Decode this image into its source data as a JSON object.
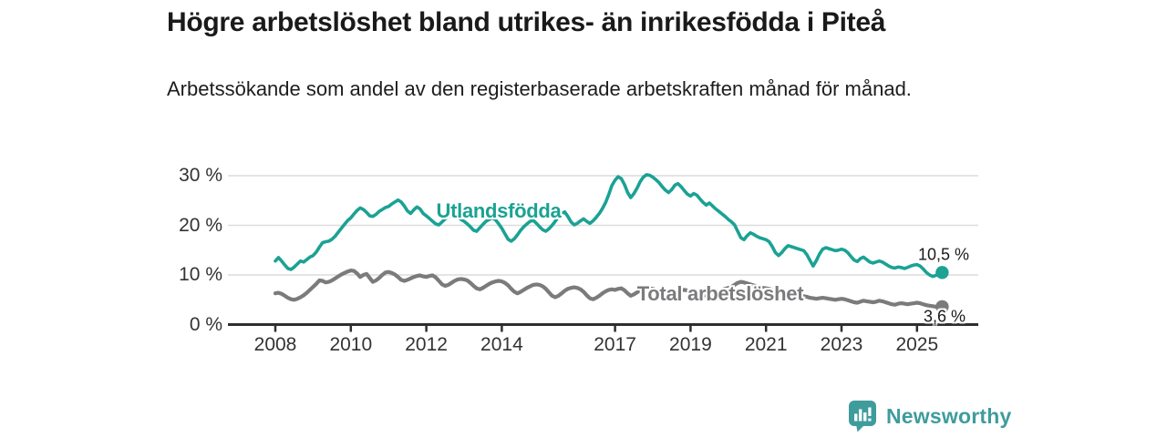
{
  "title": "Högre arbetslöshet bland utrikes- än inrikesfödda i Piteå",
  "subtitle": "Arbetssökande som andel av den registerbaserade arbetskraften månad för månad.",
  "footer": {
    "brand": "Newsworthy",
    "brand_icon": "speech-bubble-bar-chart"
  },
  "colors": {
    "teal_line": "#1ba294",
    "gray_line": "#7b7b7e",
    "grid": "#dcdcdc",
    "axis": "#2e2e2e",
    "tick_text": "#333333",
    "label_text": "#1a1a1a",
    "brand_teal": "#3f9c9c"
  },
  "chart_data": {
    "type": "line",
    "title": "Högre arbetslöshet bland utrikes- än inrikesfödda i Piteå",
    "subtitle": "Arbetssökande som andel av den registerbaserade arbetskraften månad för månad.",
    "unit": "%",
    "frequency": "monthly",
    "x_start": "2008-01",
    "x_end": "2025-09",
    "ylim": [
      0,
      30
    ],
    "grid": true,
    "y_ticks": [
      {
        "label": "30 %",
        "value": 30
      },
      {
        "label": "20 %",
        "value": 20
      },
      {
        "label": "10 %",
        "value": 10
      },
      {
        "label": "0 %",
        "value": 0
      }
    ],
    "x_ticks": [
      {
        "label": "2008",
        "year": 2008
      },
      {
        "label": "2010",
        "year": 2010
      },
      {
        "label": "2012",
        "year": 2012
      },
      {
        "label": "2014",
        "year": 2014
      },
      {
        "label": "2017",
        "year": 2017
      },
      {
        "label": "2019",
        "year": 2019
      },
      {
        "label": "2021",
        "year": 2021
      },
      {
        "label": "2023",
        "year": 2023
      },
      {
        "label": "2025",
        "year": 2025
      }
    ],
    "series": [
      {
        "name": "Utlandsfödda",
        "id": "utlandsfodda",
        "color": "#1ba294",
        "end_label": "10,5 %",
        "end_value": 10.5,
        "values": [
          12.8,
          13.5,
          12.8,
          12.0,
          11.3,
          11.1,
          11.6,
          12.2,
          12.8,
          12.6,
          13.1,
          13.6,
          13.9,
          14.6,
          15.6,
          16.5,
          16.7,
          16.8,
          17.2,
          17.8,
          18.6,
          19.4,
          20.2,
          21.0,
          21.5,
          22.3,
          23.0,
          23.5,
          23.2,
          22.6,
          21.9,
          21.8,
          22.2,
          22.8,
          23.2,
          23.6,
          23.8,
          24.3,
          24.7,
          25.1,
          24.7,
          23.9,
          22.9,
          22.4,
          23.1,
          23.7,
          23.3,
          22.4,
          21.9,
          21.4,
          20.8,
          20.3,
          20.1,
          20.7,
          21.3,
          21.7,
          22.0,
          22.2,
          21.8,
          21.2,
          20.8,
          20.3,
          19.7,
          19.0,
          18.8,
          19.5,
          20.2,
          20.8,
          21.2,
          21.5,
          21.1,
          20.3,
          19.4,
          18.3,
          17.2,
          16.8,
          17.3,
          18.1,
          19.0,
          19.7,
          20.3,
          20.8,
          21.0,
          20.4,
          19.7,
          19.1,
          18.8,
          19.3,
          20.0,
          20.8,
          21.7,
          22.3,
          22.7,
          21.8,
          20.7,
          20.1,
          20.4,
          20.9,
          21.3,
          20.8,
          20.4,
          20.9,
          21.6,
          22.4,
          23.4,
          24.6,
          26.2,
          28.0,
          29.1,
          29.8,
          29.4,
          28.2,
          26.6,
          25.6,
          26.4,
          27.5,
          28.8,
          29.7,
          30.2,
          30.1,
          29.7,
          29.2,
          28.6,
          27.8,
          27.1,
          26.6,
          27.2,
          28.1,
          28.4,
          27.8,
          27.0,
          26.3,
          25.9,
          26.4,
          26.1,
          25.3,
          24.6,
          24.1,
          24.5,
          23.9,
          23.3,
          22.8,
          22.3,
          21.8,
          21.2,
          20.7,
          20.1,
          18.8,
          17.5,
          17.1,
          17.9,
          18.5,
          18.2,
          17.8,
          17.5,
          17.3,
          17.1,
          16.7,
          15.7,
          14.5,
          13.9,
          14.5,
          15.3,
          15.9,
          15.7,
          15.5,
          15.3,
          15.1,
          14.9,
          14.1,
          12.9,
          11.8,
          12.9,
          14.2,
          15.2,
          15.5,
          15.3,
          15.1,
          14.9,
          15.0,
          15.2,
          15.0,
          14.5,
          13.7,
          13.0,
          12.7,
          13.3,
          13.6,
          13.1,
          12.6,
          12.4,
          12.6,
          12.8,
          12.6,
          12.2,
          11.8,
          11.5,
          11.4,
          11.6,
          11.5,
          11.3,
          11.5,
          11.8,
          12.0,
          12.1,
          11.8,
          11.2,
          10.5,
          10.0,
          9.7,
          9.9,
          10.2,
          10.5
        ]
      },
      {
        "name": "Total arbetslöshet",
        "id": "total-arbetsloshet",
        "color": "#7b7b7e",
        "end_label": "3,6 %",
        "end_value": 3.6,
        "values": [
          6.3,
          6.4,
          6.2,
          5.8,
          5.4,
          5.1,
          5.0,
          5.2,
          5.5,
          5.9,
          6.4,
          7.0,
          7.6,
          8.2,
          8.9,
          8.8,
          8.5,
          8.6,
          8.9,
          9.3,
          9.7,
          10.1,
          10.4,
          10.7,
          10.9,
          10.8,
          10.3,
          9.6,
          10.0,
          10.2,
          9.4,
          8.6,
          8.9,
          9.4,
          10.0,
          10.5,
          10.6,
          10.4,
          10.1,
          9.6,
          9.0,
          8.8,
          9.0,
          9.3,
          9.6,
          9.8,
          9.9,
          9.7,
          9.6,
          9.8,
          9.9,
          9.5,
          8.8,
          8.1,
          7.8,
          8.0,
          8.4,
          8.8,
          9.1,
          9.2,
          9.1,
          8.9,
          8.4,
          7.8,
          7.3,
          7.1,
          7.4,
          7.8,
          8.2,
          8.5,
          8.7,
          8.8,
          8.7,
          8.4,
          7.9,
          7.2,
          6.6,
          6.3,
          6.6,
          7.0,
          7.4,
          7.7,
          8.0,
          8.1,
          8.0,
          7.7,
          7.2,
          6.5,
          5.8,
          5.5,
          5.8,
          6.3,
          6.8,
          7.2,
          7.4,
          7.5,
          7.4,
          7.1,
          6.6,
          5.9,
          5.3,
          5.1,
          5.4,
          5.8,
          6.3,
          6.7,
          7.0,
          7.1,
          7.0,
          7.2,
          7.3,
          6.9,
          6.3,
          5.8,
          6.1,
          6.5,
          6.9,
          7.2,
          7.4,
          7.3,
          7.2,
          7.0,
          6.7,
          6.3,
          5.9,
          5.7,
          6.0,
          6.4,
          6.7,
          6.9,
          7.0,
          6.9,
          6.8,
          6.9,
          6.7,
          6.4,
          6.0,
          5.8,
          6.0,
          6.3,
          6.6,
          6.8,
          7.0,
          7.2,
          7.4,
          7.6,
          8.0,
          8.4,
          8.6,
          8.5,
          8.3,
          8.1,
          7.9,
          7.7,
          7.5,
          7.4,
          7.3,
          7.2,
          7.0,
          6.7,
          6.4,
          6.2,
          6.3,
          6.4,
          6.3,
          6.1,
          5.9,
          5.8,
          5.7,
          5.6,
          5.4,
          5.3,
          5.2,
          5.3,
          5.4,
          5.3,
          5.2,
          5.1,
          5.0,
          5.1,
          5.2,
          5.1,
          4.9,
          4.7,
          4.5,
          4.4,
          4.6,
          4.8,
          4.7,
          4.6,
          4.5,
          4.6,
          4.8,
          4.7,
          4.5,
          4.3,
          4.1,
          4.0,
          4.2,
          4.3,
          4.2,
          4.1,
          4.2,
          4.3,
          4.4,
          4.3,
          4.1,
          3.9,
          3.8,
          3.7,
          3.6,
          3.6,
          3.6
        ]
      }
    ]
  }
}
